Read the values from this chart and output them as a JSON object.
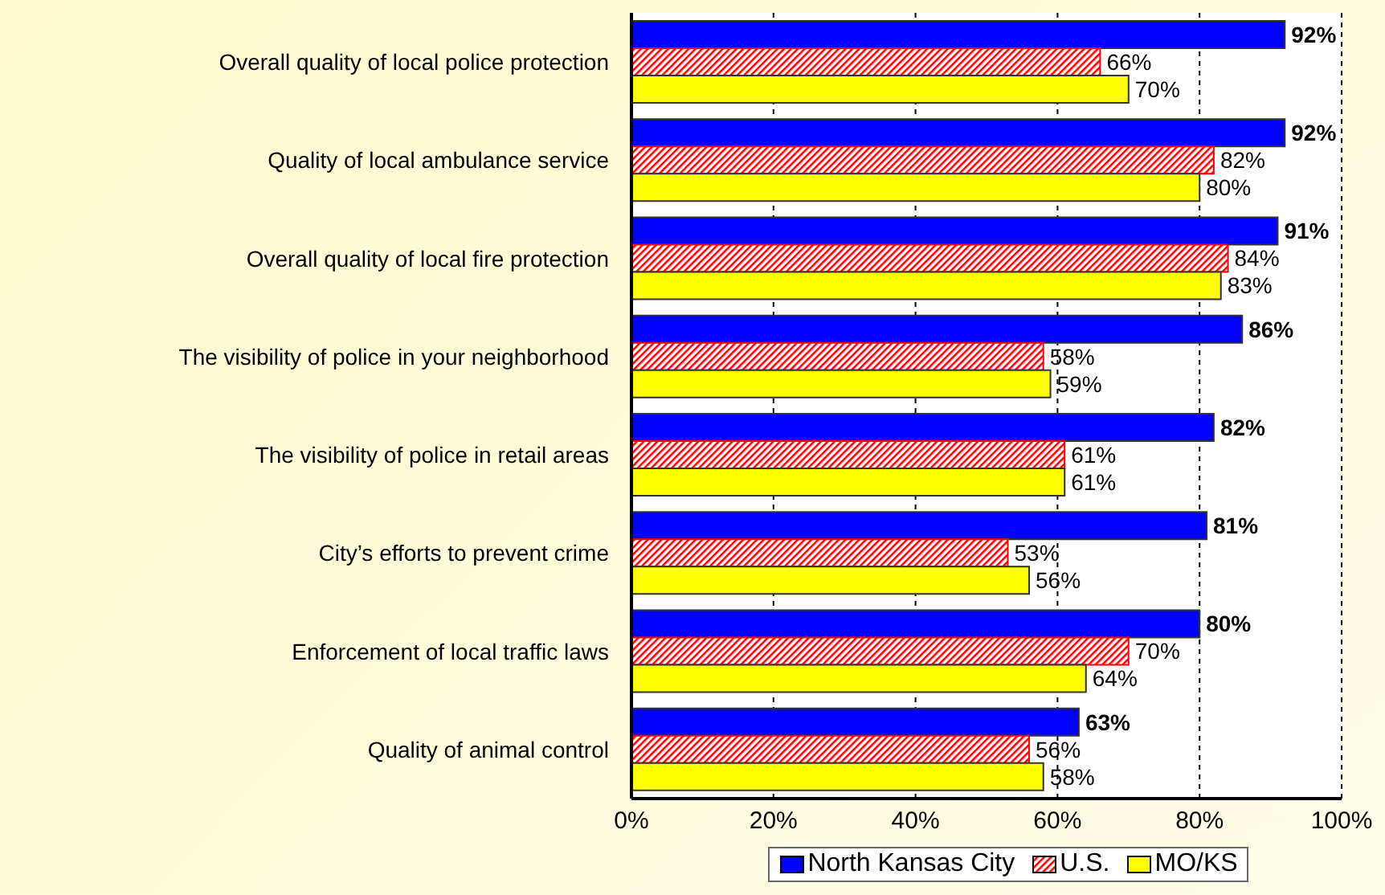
{
  "chart_data": {
    "type": "bar",
    "orientation": "horizontal",
    "categories": [
      "Overall quality of local police protection",
      "Quality of local ambulance service",
      "Overall quality of local fire protection",
      "The visibility of police in your neighborhood",
      "The visibility of police in retail areas",
      "City’s efforts to prevent crime",
      "Enforcement of local traffic laws",
      "Quality of animal control"
    ],
    "series": [
      {
        "name": "North Kansas City",
        "color": "#0000ff",
        "values": [
          92,
          92,
          91,
          86,
          82,
          81,
          80,
          63
        ],
        "value_labels": [
          "92%",
          "92%",
          "91%",
          "86%",
          "82%",
          "81%",
          "80%",
          "63%"
        ]
      },
      {
        "name": "U.S.",
        "color": "#ff0000",
        "values": [
          66,
          82,
          84,
          58,
          61,
          53,
          70,
          56
        ],
        "value_labels": [
          "66%",
          "82%",
          "84%",
          "58%",
          "61%",
          "53%",
          "70%",
          "56%"
        ]
      },
      {
        "name": "MO/KS",
        "color": "#ffff00",
        "values": [
          70,
          80,
          83,
          59,
          61,
          56,
          64,
          58
        ],
        "value_labels": [
          "70%",
          "80%",
          "83%",
          "59%",
          "61%",
          "56%",
          "64%",
          "58%"
        ]
      }
    ],
    "xlim": [
      0,
      100
    ],
    "xticks": [
      {
        "value": 0,
        "label": "0%"
      },
      {
        "value": 20,
        "label": "20%"
      },
      {
        "value": 40,
        "label": "40%"
      },
      {
        "value": 60,
        "label": "60%"
      },
      {
        "value": 80,
        "label": "80%"
      },
      {
        "value": 100,
        "label": "100%"
      }
    ],
    "grid": "x",
    "legend": "bottom"
  }
}
